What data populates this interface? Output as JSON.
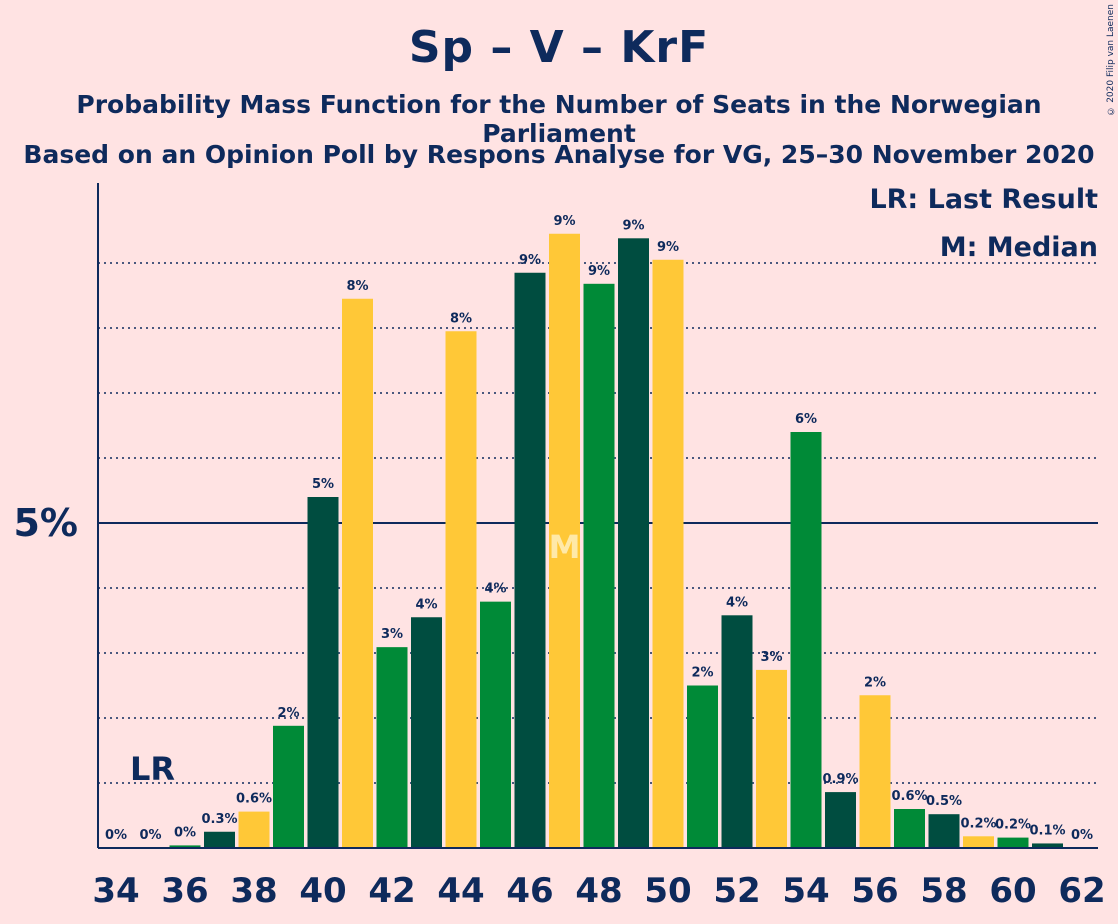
{
  "title": "Sp – V – KrF",
  "subtitle1": "Probability Mass Function for the Number of Seats in the Norwegian Parliament",
  "subtitle2": "Based on an Opinion Poll by Respons Analyse for VG, 25–30 November 2020",
  "copyright": "© 2020 Filip van Laenen",
  "legend": {
    "lr": "LR: Last Result",
    "m": "M: Median"
  },
  "colors": {
    "dark_green": "#004D40",
    "yellow": "#FFC837",
    "green": "#008A37",
    "text": "#0E2A5C",
    "background": "#FFE3E3"
  },
  "chart_data": {
    "type": "bar",
    "x": [
      34,
      35,
      36,
      37,
      38,
      39,
      40,
      41,
      42,
      43,
      44,
      45,
      46,
      47,
      48,
      49,
      50,
      51,
      52,
      53,
      54,
      55,
      56,
      57,
      58,
      59,
      60,
      61,
      62
    ],
    "values": [
      0,
      0,
      0.04,
      0.25,
      0.56,
      1.88,
      5.4,
      8.45,
      3.09,
      3.55,
      7.95,
      3.79,
      8.85,
      9.45,
      8.68,
      9.38,
      9.05,
      2.5,
      3.58,
      2.74,
      6.4,
      0.86,
      2.35,
      0.6,
      0.52,
      0.18,
      0.16,
      0.07,
      0
    ],
    "labels": [
      "0%",
      "0%",
      "0%",
      "0.3%",
      "0.6%",
      "2%",
      "5%",
      "8%",
      "3%",
      "4%",
      "8%",
      "4%",
      "9%",
      "9%",
      "9%",
      "9%",
      "9%",
      "2%",
      "4%",
      "3%",
      "6%",
      "0.9%",
      "2%",
      "0.6%",
      "0.5%",
      "0.2%",
      "0.2%",
      "0.1%",
      "0%"
    ],
    "color_cycle": [
      "dark_green",
      "yellow",
      "green"
    ],
    "xticks": [
      34,
      36,
      38,
      40,
      42,
      44,
      46,
      48,
      50,
      52,
      54,
      56,
      58,
      60,
      62
    ],
    "ytick_label": "5%",
    "ytick_value": 5,
    "ylim": [
      0,
      10.2
    ],
    "minor_gridlines": [
      1,
      2,
      3,
      4,
      6,
      7,
      8,
      9
    ],
    "last_result_seat": 35,
    "last_result_label": "LR",
    "median_seat": 47,
    "median_label": "M"
  }
}
